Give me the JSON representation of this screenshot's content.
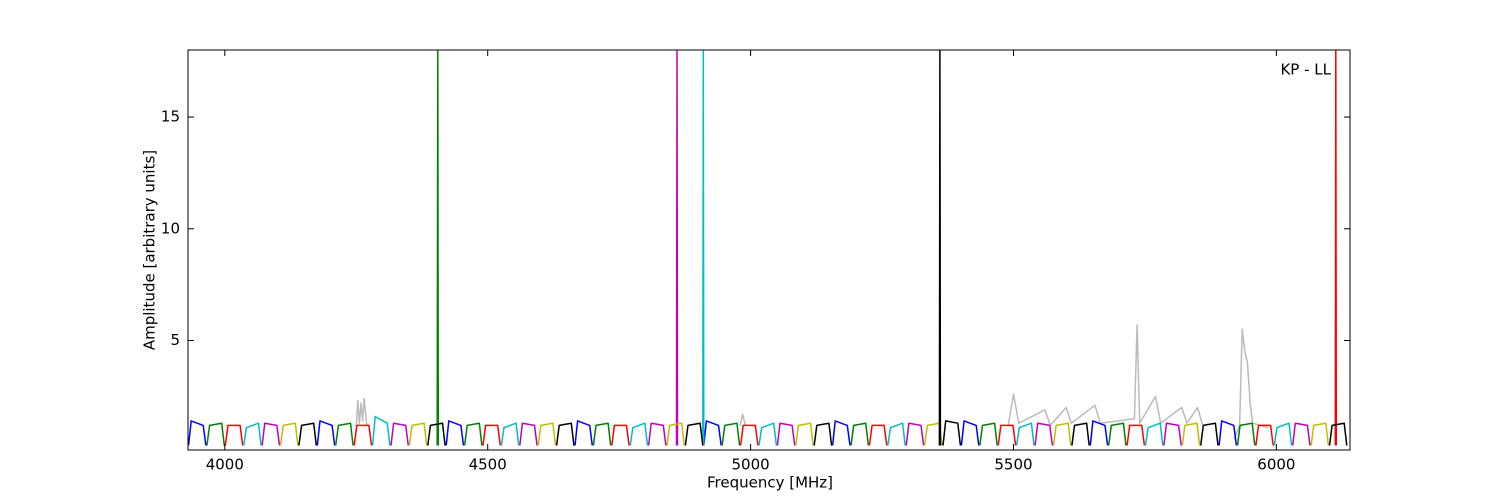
{
  "chart_data": {
    "type": "line",
    "xlabel": "Frequency [MHz]",
    "ylabel": "Amplitude [arbitrary units]",
    "annotation": "KP - LL",
    "xlim": [
      3930,
      6140
    ],
    "ylim": [
      0.1,
      18
    ],
    "xticks": [
      4000,
      4500,
      5000,
      5500,
      6000
    ],
    "yticks": [
      5,
      10,
      15
    ],
    "series": [
      {
        "color": "#bbbbbb",
        "x": [
          4250,
          4253,
          4256,
          4259,
          4262,
          4265,
          4270,
          null,
          4980,
          4985,
          4990,
          null,
          5490,
          5500,
          5510,
          5560,
          5570,
          5600,
          5610,
          5655,
          5665,
          5730,
          5735,
          5740,
          5770,
          5780,
          5820,
          5830,
          5850,
          5860,
          null,
          5920,
          5930,
          5935,
          5940,
          5945,
          5950,
          5955,
          5985
        ],
        "values": [
          1.2,
          2.3,
          1.3,
          2.2,
          1.4,
          2.4,
          1.2,
          null,
          1.2,
          1.7,
          1.2,
          null,
          1.2,
          2.6,
          1.3,
          1.9,
          1.2,
          2.0,
          1.3,
          2.1,
          1.3,
          1.5,
          5.7,
          1.3,
          2.5,
          1.3,
          2.0,
          1.3,
          2.0,
          1.2,
          null,
          0.6,
          1.2,
          5.5,
          4.5,
          4.0,
          2.2,
          1.3,
          1.1
        ]
      },
      {
        "color": "#0000ff",
        "x": [
          3931,
          3936,
          3959,
          3964,
          null,
          4176,
          4181,
          4204,
          4209,
          null,
          4421,
          4426,
          4449,
          4454,
          null,
          4666,
          4671,
          4694,
          4699,
          null,
          4911,
          4916,
          4939,
          4944,
          null,
          5156,
          5161,
          5184,
          5189,
          null,
          5401,
          5406,
          5429,
          5434,
          null,
          5646,
          5651,
          5674,
          5679,
          null,
          5891,
          5896,
          5919,
          5924
        ],
        "values": [
          0.3,
          1.4,
          1.2,
          0.3,
          null,
          0.3,
          1.4,
          1.2,
          0.3,
          null,
          0.3,
          1.4,
          1.2,
          0.3,
          null,
          0.3,
          1.4,
          1.2,
          0.3,
          null,
          0.3,
          1.4,
          1.2,
          0.3,
          null,
          0.3,
          1.4,
          1.2,
          0.3,
          null,
          0.3,
          1.4,
          1.2,
          0.3,
          null,
          0.3,
          1.4,
          1.2,
          0.3,
          null,
          0.3,
          1.4,
          1.2,
          0.3
        ]
      },
      {
        "color": "#008000",
        "x": [
          3966,
          3971,
          3994,
          3999,
          null,
          4211,
          4216,
          4239,
          4244,
          null,
          4456,
          4461,
          4484,
          4489,
          null,
          4701,
          4706,
          4729,
          4734,
          null,
          4946,
          4951,
          4974,
          4979,
          null,
          5191,
          5196,
          5219,
          5224,
          null,
          5436,
          5441,
          5464,
          5469,
          null,
          5681,
          5686,
          5709,
          5714,
          null,
          5926,
          5931,
          5954,
          5959,
          null,
          4404,
          4405,
          4406
        ],
        "values": [
          0.3,
          1.2,
          1.3,
          0.3,
          null,
          0.3,
          1.2,
          1.3,
          0.3,
          null,
          0.3,
          1.2,
          1.3,
          0.3,
          null,
          0.3,
          1.2,
          1.3,
          0.3,
          null,
          0.3,
          1.2,
          1.3,
          0.3,
          null,
          0.3,
          1.2,
          1.3,
          0.3,
          null,
          0.3,
          1.2,
          1.3,
          0.3,
          null,
          0.3,
          1.2,
          1.3,
          0.3,
          null,
          0.3,
          1.2,
          1.3,
          0.3,
          null,
          0.3,
          18,
          0.3
        ]
      },
      {
        "color": "#ff0000",
        "x": [
          4001,
          4006,
          4029,
          4034,
          null,
          4246,
          4251,
          4274,
          4279,
          null,
          4491,
          4496,
          4519,
          4524,
          null,
          4736,
          4741,
          4764,
          4769,
          null,
          4981,
          4986,
          5009,
          5014,
          null,
          5226,
          5231,
          5254,
          5259,
          null,
          5471,
          5476,
          5499,
          5504,
          null,
          5716,
          5721,
          5744,
          5749,
          null,
          5961,
          5966,
          5989,
          5994,
          null,
          6112,
          6113,
          6114
        ],
        "values": [
          0.3,
          1.2,
          1.2,
          0.3,
          null,
          0.3,
          1.2,
          1.2,
          0.3,
          null,
          0.3,
          1.2,
          1.2,
          0.3,
          null,
          0.3,
          1.2,
          1.2,
          0.3,
          null,
          0.3,
          1.2,
          1.2,
          0.3,
          null,
          0.3,
          1.2,
          1.2,
          0.3,
          null,
          0.3,
          1.2,
          1.2,
          0.3,
          null,
          0.3,
          1.2,
          1.2,
          0.3,
          null,
          0.3,
          1.2,
          1.2,
          0.3,
          null,
          0.3,
          18,
          0.3
        ]
      },
      {
        "color": "#00bfbf",
        "x": [
          4036,
          4041,
          4064,
          4069,
          null,
          4281,
          4286,
          4309,
          4314,
          null,
          4526,
          4531,
          4554,
          4559,
          null,
          4771,
          4776,
          4799,
          4804,
          null,
          5016,
          5021,
          5044,
          5049,
          null,
          5261,
          5266,
          5289,
          5294,
          null,
          5506,
          5511,
          5534,
          5539,
          null,
          5751,
          5756,
          5779,
          5784,
          null,
          5996,
          6001,
          6024,
          6029,
          null,
          4909,
          4910,
          4911
        ],
        "values": [
          0.3,
          1.1,
          1.3,
          0.3,
          null,
          0.3,
          1.6,
          1.3,
          0.3,
          null,
          0.3,
          1.1,
          1.3,
          0.3,
          null,
          0.3,
          1.1,
          1.3,
          0.3,
          null,
          0.3,
          1.1,
          1.3,
          0.3,
          null,
          0.3,
          1.1,
          1.3,
          0.3,
          null,
          0.3,
          1.1,
          1.3,
          0.3,
          null,
          0.3,
          1.1,
          1.3,
          0.3,
          null,
          0.3,
          1.1,
          1.3,
          0.3,
          null,
          0.3,
          18,
          0.3
        ]
      },
      {
        "color": "#bf00bf",
        "x": [
          4071,
          4076,
          4099,
          4104,
          null,
          4316,
          4321,
          4344,
          4349,
          null,
          4561,
          4566,
          4589,
          4594,
          null,
          4806,
          4811,
          4834,
          4839,
          null,
          5051,
          5056,
          5079,
          5084,
          null,
          5296,
          5301,
          5324,
          5329,
          null,
          5541,
          5546,
          5569,
          5574,
          null,
          5786,
          5791,
          5814,
          5819,
          null,
          6031,
          6036,
          6059,
          6064,
          null,
          4859,
          4860,
          4861
        ],
        "values": [
          0.3,
          1.3,
          1.2,
          0.3,
          null,
          0.3,
          1.3,
          1.2,
          0.3,
          null,
          0.3,
          1.3,
          1.2,
          0.3,
          null,
          0.3,
          1.3,
          1.2,
          0.3,
          null,
          0.3,
          1.3,
          1.2,
          0.3,
          null,
          0.3,
          1.3,
          1.2,
          0.3,
          null,
          0.3,
          1.3,
          1.2,
          0.3,
          null,
          0.3,
          1.3,
          1.2,
          0.3,
          null,
          0.3,
          1.3,
          1.2,
          0.3,
          null,
          0.3,
          18,
          0.3
        ]
      },
      {
        "color": "#bfbf00",
        "x": [
          4106,
          4111,
          4134,
          4139,
          null,
          4351,
          4356,
          4379,
          4384,
          null,
          4596,
          4601,
          4624,
          4629,
          null,
          4841,
          4846,
          4869,
          4874,
          null,
          5086,
          5091,
          5114,
          5119,
          null,
          5331,
          5336,
          5359,
          5364,
          null,
          5576,
          5581,
          5604,
          5609,
          null,
          5821,
          5826,
          5849,
          5854,
          null,
          6066,
          6071,
          6094,
          6099
        ],
        "values": [
          0.3,
          1.2,
          1.3,
          0.3,
          null,
          0.3,
          1.2,
          1.3,
          0.3,
          null,
          0.3,
          1.2,
          1.3,
          0.3,
          null,
          0.3,
          1.2,
          1.3,
          0.3,
          null,
          0.3,
          1.2,
          1.3,
          0.3,
          null,
          0.3,
          1.2,
          1.3,
          0.3,
          null,
          0.3,
          1.2,
          1.3,
          0.3,
          null,
          0.3,
          1.2,
          1.3,
          0.3,
          null,
          0.3,
          1.2,
          1.3,
          0.3
        ]
      },
      {
        "color": "#000000",
        "x": [
          4141,
          4146,
          4169,
          4174,
          null,
          4386,
          4391,
          4414,
          4419,
          null,
          4631,
          4636,
          4659,
          4664,
          null,
          4876,
          4881,
          4904,
          4909,
          null,
          5121,
          5126,
          5149,
          5154,
          null,
          5366,
          5371,
          5394,
          5399,
          null,
          5611,
          5616,
          5639,
          5644,
          null,
          5856,
          5861,
          5884,
          5889,
          null,
          6101,
          6106,
          6129,
          6134,
          null,
          5359,
          5360,
          5361
        ],
        "values": [
          0.3,
          1.2,
          1.3,
          0.3,
          null,
          0.3,
          1.2,
          1.3,
          0.3,
          null,
          0.3,
          1.2,
          1.3,
          0.3,
          null,
          0.3,
          1.2,
          1.3,
          0.3,
          null,
          0.3,
          1.2,
          1.3,
          0.3,
          null,
          0.3,
          1.4,
          1.3,
          0.3,
          null,
          0.3,
          1.2,
          1.3,
          0.3,
          null,
          0.3,
          1.2,
          1.3,
          0.3,
          null,
          0.3,
          1.2,
          1.3,
          0.3,
          null,
          0.3,
          18,
          0.3
        ]
      }
    ]
  }
}
